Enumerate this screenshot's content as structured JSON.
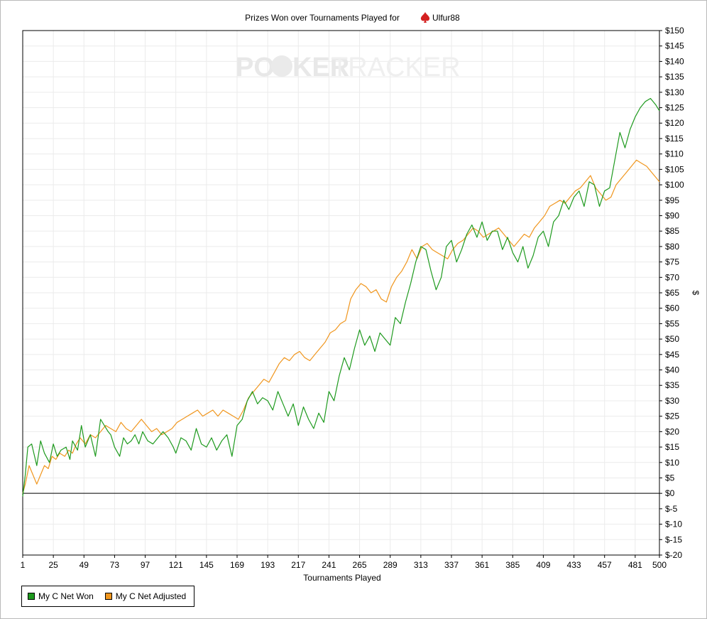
{
  "chart_data": {
    "type": "line",
    "title": "Prizes Won over Tournaments Played for",
    "player": "Ulfur88",
    "watermark": [
      "PO",
      "KER",
      "TRACKER"
    ],
    "xlabel": "Tournaments Played",
    "ylabel": "$",
    "xlim": [
      1,
      500
    ],
    "ylim": [
      -20,
      150
    ],
    "x_ticks": [
      1,
      25,
      49,
      73,
      97,
      121,
      145,
      169,
      193,
      217,
      241,
      265,
      289,
      313,
      337,
      361,
      385,
      409,
      433,
      457,
      481,
      500
    ],
    "y_ticks": [
      -20,
      -15,
      -10,
      -5,
      0,
      5,
      10,
      15,
      20,
      25,
      30,
      35,
      40,
      45,
      50,
      55,
      60,
      65,
      70,
      75,
      80,
      85,
      90,
      95,
      100,
      105,
      110,
      115,
      120,
      125,
      130,
      135,
      140,
      145,
      150
    ],
    "y_tick_labels": [
      "$-20",
      "$-15",
      "$-10",
      "$-5",
      "$0",
      "$5",
      "$10",
      "$15",
      "$20",
      "$25",
      "$30",
      "$35",
      "$40",
      "$45",
      "$50",
      "$55",
      "$60",
      "$65",
      "$70",
      "$75",
      "$80",
      "$85",
      "$90",
      "$95",
      "$100",
      "$105",
      "$110",
      "$115",
      "$120",
      "$125",
      "$130",
      "$135",
      "$140",
      "$145",
      "$150"
    ],
    "grid": true,
    "legend_position": "bottom-left",
    "series": [
      {
        "name": "My C Net Won",
        "color": "#1e9a1e",
        "x": [
          1,
          3,
          5,
          8,
          12,
          15,
          18,
          22,
          25,
          28,
          31,
          35,
          38,
          40,
          44,
          47,
          50,
          54,
          58,
          62,
          65,
          68,
          70,
          73,
          77,
          80,
          83,
          86,
          89,
          92,
          95,
          99,
          103,
          107,
          111,
          115,
          119,
          121,
          125,
          129,
          133,
          137,
          141,
          145,
          149,
          153,
          157,
          161,
          165,
          169,
          173,
          177,
          181,
          185,
          189,
          193,
          197,
          201,
          205,
          209,
          213,
          217,
          221,
          225,
          229,
          233,
          237,
          241,
          245,
          249,
          253,
          257,
          261,
          265,
          269,
          273,
          277,
          281,
          285,
          289,
          293,
          297,
          301,
          305,
          309,
          313,
          317,
          321,
          325,
          329,
          333,
          337,
          341,
          345,
          349,
          353,
          357,
          361,
          365,
          369,
          373,
          377,
          381,
          385,
          389,
          393,
          397,
          401,
          405,
          409,
          413,
          417,
          421,
          425,
          429,
          433,
          437,
          441,
          445,
          449,
          453,
          457,
          461,
          465,
          469,
          473,
          477,
          481,
          485,
          489,
          493,
          497,
          500
        ],
        "values": [
          -1,
          6,
          15,
          16,
          9,
          17,
          13,
          10,
          16,
          12,
          14,
          15,
          11,
          17,
          14,
          22,
          15,
          19,
          12,
          24,
          22,
          20,
          19,
          15,
          12,
          18,
          16,
          17,
          19,
          16,
          20,
          17,
          16,
          18,
          20,
          18,
          15,
          13,
          18,
          17,
          14,
          21,
          16,
          15,
          18,
          14,
          17,
          19,
          12,
          22,
          24,
          30,
          33,
          29,
          31,
          30,
          27,
          33,
          29,
          25,
          29,
          22,
          28,
          24,
          21,
          26,
          23,
          33,
          30,
          38,
          44,
          40,
          47,
          53,
          48,
          51,
          46,
          52,
          50,
          48,
          57,
          55,
          62,
          68,
          75,
          80,
          79,
          72,
          66,
          70,
          80,
          82,
          75,
          79,
          84,
          87,
          83,
          88,
          82,
          85,
          85,
          79,
          83,
          78,
          75,
          80,
          73,
          77,
          83,
          85,
          80,
          88,
          90,
          95,
          92,
          96,
          98,
          93,
          101,
          100,
          93,
          98,
          99,
          108,
          117,
          112,
          118,
          122,
          125,
          127,
          128,
          126,
          124
        ]
      },
      {
        "name": "My C Net Adjusted",
        "color": "#f0961e",
        "x": [
          1,
          3,
          6,
          9,
          12,
          15,
          18,
          21,
          24,
          27,
          30,
          34,
          37,
          40,
          43,
          46,
          50,
          54,
          58,
          62,
          66,
          70,
          74,
          78,
          82,
          86,
          90,
          94,
          98,
          102,
          106,
          110,
          114,
          118,
          122,
          126,
          130,
          134,
          138,
          142,
          146,
          150,
          154,
          158,
          162,
          166,
          170,
          174,
          178,
          182,
          186,
          190,
          194,
          198,
          202,
          206,
          210,
          214,
          218,
          222,
          226,
          230,
          234,
          238,
          242,
          246,
          250,
          254,
          258,
          262,
          266,
          270,
          274,
          278,
          282,
          286,
          290,
          294,
          298,
          302,
          306,
          310,
          314,
          318,
          322,
          326,
          330,
          334,
          338,
          342,
          346,
          350,
          354,
          358,
          362,
          366,
          370,
          374,
          378,
          382,
          386,
          390,
          394,
          398,
          402,
          406,
          410,
          414,
          418,
          422,
          426,
          430,
          434,
          438,
          442,
          446,
          450,
          454,
          458,
          462,
          466,
          470,
          474,
          478,
          482,
          486,
          490,
          494,
          498,
          500
        ],
        "values": [
          0,
          3,
          9,
          6,
          3,
          6,
          9,
          8,
          12,
          11,
          13,
          12,
          14,
          13,
          16,
          18,
          16,
          19,
          18,
          20,
          22,
          21,
          20,
          23,
          21,
          20,
          22,
          24,
          22,
          20,
          21,
          19,
          20,
          21,
          23,
          24,
          25,
          26,
          27,
          25,
          26,
          27,
          25,
          27,
          26,
          25,
          24,
          27,
          31,
          33,
          35,
          37,
          36,
          39,
          42,
          44,
          43,
          45,
          46,
          44,
          43,
          45,
          47,
          49,
          52,
          53,
          55,
          56,
          63,
          66,
          68,
          67,
          65,
          66,
          63,
          62,
          67,
          70,
          72,
          75,
          79,
          76,
          80,
          81,
          79,
          78,
          77,
          76,
          79,
          81,
          82,
          84,
          86,
          85,
          83,
          84,
          85,
          86,
          84,
          82,
          80,
          82,
          84,
          83,
          86,
          88,
          90,
          93,
          94,
          95,
          94,
          96,
          98,
          99,
          101,
          103,
          99,
          97,
          95,
          96,
          100,
          102,
          104,
          106,
          108,
          107,
          106,
          104,
          102,
          101
        ]
      }
    ]
  }
}
